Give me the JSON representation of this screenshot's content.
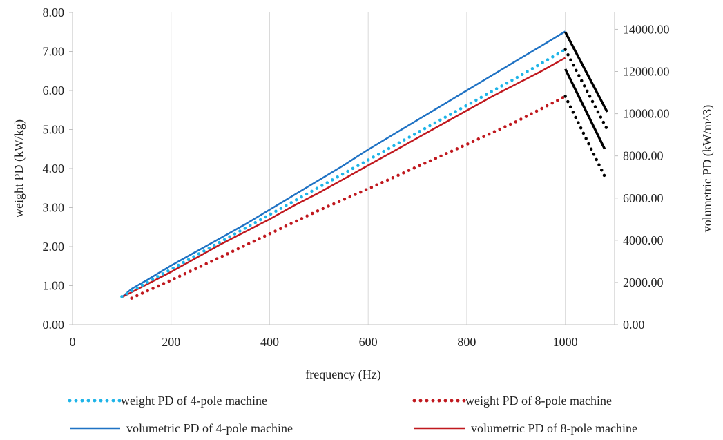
{
  "chart_data": {
    "type": "line",
    "title": "",
    "xlabel": "frequency (Hz)",
    "ylabel_left": "weight PD  (kW/kg)",
    "ylabel_right": "volumetric PD (kW/m^3)",
    "xlim": [
      0,
      1100
    ],
    "ylim_left": [
      0,
      8
    ],
    "ylim_right": [
      0,
      14800
    ],
    "x_ticks": [
      "0",
      "200",
      "400",
      "600",
      "800",
      "1000"
    ],
    "x_tick_values": [
      0,
      200,
      400,
      600,
      800,
      1000
    ],
    "y_left_ticks": [
      "0.00",
      "1.00",
      "2.00",
      "3.00",
      "4.00",
      "5.00",
      "6.00",
      "7.00",
      "8.00"
    ],
    "y_left_tick_values": [
      0,
      1,
      2,
      3,
      4,
      5,
      6,
      7,
      8
    ],
    "y_right_ticks": [
      "0.00",
      "2000.00",
      "4000.00",
      "6000.00",
      "8000.00",
      "10000.00",
      "12000.00",
      "14000.00"
    ],
    "y_right_tick_values": [
      0,
      2000,
      4000,
      6000,
      8000,
      10000,
      12000,
      14000
    ],
    "grid": "vertical",
    "legend_position": "bottom",
    "series": [
      {
        "name": "weight PD of 4-pole machine",
        "axis": "left",
        "style": "dotted",
        "color": "#1EB4E8",
        "x": [
          100,
          200,
          300,
          400,
          500,
          600,
          700,
          800,
          900,
          1000
        ],
        "y": [
          0.72,
          1.42,
          2.12,
          2.82,
          3.52,
          4.22,
          4.92,
          5.62,
          6.32,
          7.05
        ]
      },
      {
        "name": "weight PD of 8-pole machine",
        "axis": "left",
        "style": "dotted",
        "color": "#C0181E",
        "x": [
          120,
          200,
          300,
          400,
          500,
          600,
          700,
          800,
          900,
          1000
        ],
        "y": [
          0.68,
          1.14,
          1.73,
          2.33,
          2.93,
          3.48,
          4.05,
          4.62,
          5.2,
          5.85
        ]
      },
      {
        "name": "volumetric PD of 4-pole machine",
        "axis": "right",
        "style": "solid",
        "color": "#1F72C4",
        "x": [
          100,
          120,
          150,
          200,
          250,
          300,
          350,
          400,
          450,
          500,
          550,
          600,
          650,
          700,
          750,
          800,
          850,
          900,
          950,
          1000
        ],
        "y": [
          1300,
          1700,
          2100,
          2800,
          3450,
          4100,
          4750,
          5450,
          6150,
          6850,
          7550,
          8300,
          9000,
          9700,
          10400,
          11100,
          11800,
          12500,
          13200,
          13900
        ]
      },
      {
        "name": "volumetric PD of 8-pole machine",
        "axis": "right",
        "style": "solid",
        "color": "#C0181E",
        "x": [
          100,
          150,
          200,
          250,
          300,
          350,
          400,
          450,
          500,
          550,
          600,
          650,
          700,
          750,
          800,
          850,
          900,
          950,
          1000
        ],
        "y": [
          1300,
          1900,
          2500,
          3150,
          3800,
          4400,
          5000,
          5650,
          6250,
          6900,
          7550,
          8200,
          8850,
          9500,
          10150,
          10800,
          11400,
          12000,
          12650
        ]
      }
    ],
    "extra_segments": [
      {
        "style": "solid",
        "color": "#000000",
        "axis": "left",
        "x": [
          1000,
          1085
        ],
        "y": [
          7.5,
          5.45
        ]
      },
      {
        "style": "solid",
        "color": "#000000",
        "axis": "left",
        "x": [
          1000,
          1080
        ],
        "y": [
          6.55,
          4.5
        ]
      },
      {
        "style": "dotted",
        "color": "#000000",
        "axis": "left",
        "x": [
          1000,
          1085
        ],
        "y": [
          7.05,
          5.0
        ]
      },
      {
        "style": "dotted",
        "color": "#000000",
        "axis": "left",
        "x": [
          1000,
          1080
        ],
        "y": [
          5.85,
          3.8
        ]
      }
    ]
  }
}
